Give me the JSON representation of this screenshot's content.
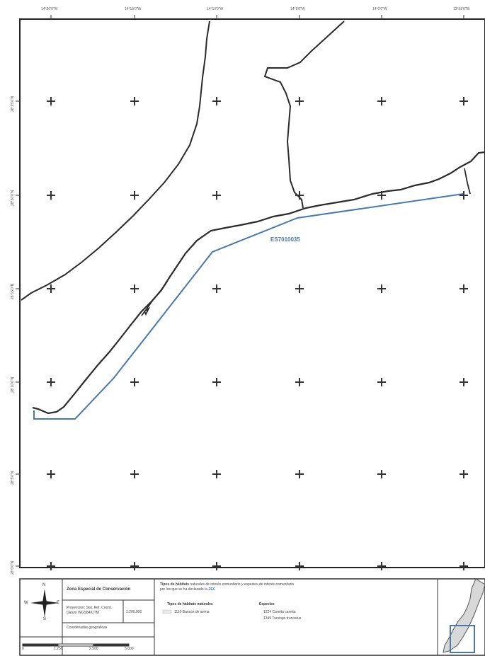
{
  "map": {
    "top_ticks": [
      "14°20'0\"W",
      "14°15'0\"W",
      "14°10'0\"W",
      "14°5'0\"W",
      "14°0'0\"W",
      "13°55'0\"W"
    ],
    "left_ticks": [
      "28°25'0\"N",
      "28°20'0\"N",
      "28°15'0\"N",
      "28°10'0\"N",
      "28°5'0\"N",
      "28°0'0\"N"
    ],
    "site_code": "ES7010035",
    "colors": {
      "boundary": "#4a78a8",
      "coast": "#2b2b2b",
      "frame": "#222222"
    }
  },
  "legend": {
    "compass": {
      "n": "N",
      "s": "S",
      "e": "E",
      "w": "W"
    },
    "title": "Zona Especial de Conservación",
    "projection": "Proyección: Sist. Ref. Coord. Datum WGS84/UTM",
    "scale": "1:200.000",
    "coords_note": "Coordenadas geográficas",
    "scalebar_labels": [
      "0",
      "1.250",
      "2.500",
      "5.000"
    ],
    "types_title_prefix": "Tipos de hábitats",
    "types_title_rest": "naturales de interés comunitario y especies de interés comunitario",
    "types_title_line2_a": "por los que se ha declarado la",
    "types_title_line2_b": "ZEC",
    "habitat_header": "Tipos de hábitats naturales",
    "habitat_item": "1110 Bancos de arena",
    "species_header": "Especies",
    "species_items": [
      "1224 Caretta caretta",
      "1349 Tursiops truncatus"
    ]
  }
}
